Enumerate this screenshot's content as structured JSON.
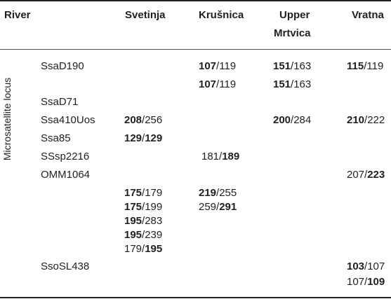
{
  "header": {
    "river": "River",
    "svetinja": "Svetinja",
    "krusnica": "Krušnica",
    "upper_line1": "Upper",
    "upper_line2": "Mrtvica",
    "vratna": "Vratna"
  },
  "row_group_label": "Microsatellite locus",
  "loci": [
    {
      "name": "SsaD190"
    },
    {
      "name": "SsaD71"
    },
    {
      "name": "Ssa410Uos"
    },
    {
      "name": "Ssa85"
    },
    {
      "name": "SSsp2216"
    },
    {
      "name": "OMM1064"
    },
    {
      "name": "SsoSL438"
    }
  ],
  "values": {
    "d190_k1_bold": "107",
    "d190_k1_rest": "/119",
    "d190_k2_bold": "107",
    "d190_k2_rest": "/119",
    "d190_u1_bold": "151",
    "d190_u1_rest": "/163",
    "d190_u2_bold": "151",
    "d190_u2_rest": "/163",
    "d190_v1_bold": "115",
    "d190_v1_rest": "/119",
    "s410_s_bold": "208",
    "s410_s_rest": "/256",
    "s410_u_bold": "200",
    "s410_u_rest": "/284",
    "s410_v_bold": "210",
    "s410_v_rest": "/222",
    "s85_s_bold1": "129",
    "s85_s_sep": "/",
    "s85_s_bold2": "129",
    "sp2216_k_rest": "181/",
    "sp2216_k_bold": "189",
    "omm_v_rest": "207/",
    "omm_v_bold": "223",
    "omm_s1_bold": "175",
    "omm_s1_rest": "/179",
    "omm_s2_bold": "175",
    "omm_s2_rest": "/199",
    "omm_s3_bold": "195",
    "omm_s3_rest": "/283",
    "omm_s4_bold": "195",
    "omm_s4_rest": "/239",
    "omm_s5_rest": "179/",
    "omm_s5_bold": "195",
    "omm_k1_bold": "219",
    "omm_k1_rest": "/255",
    "omm_k2_rest": "259/",
    "omm_k2_bold": "291",
    "sl438_v1_bold": "103",
    "sl438_v1_rest": "/107",
    "sl438_v2_rest": "107/",
    "sl438_v2_bold": "109"
  }
}
